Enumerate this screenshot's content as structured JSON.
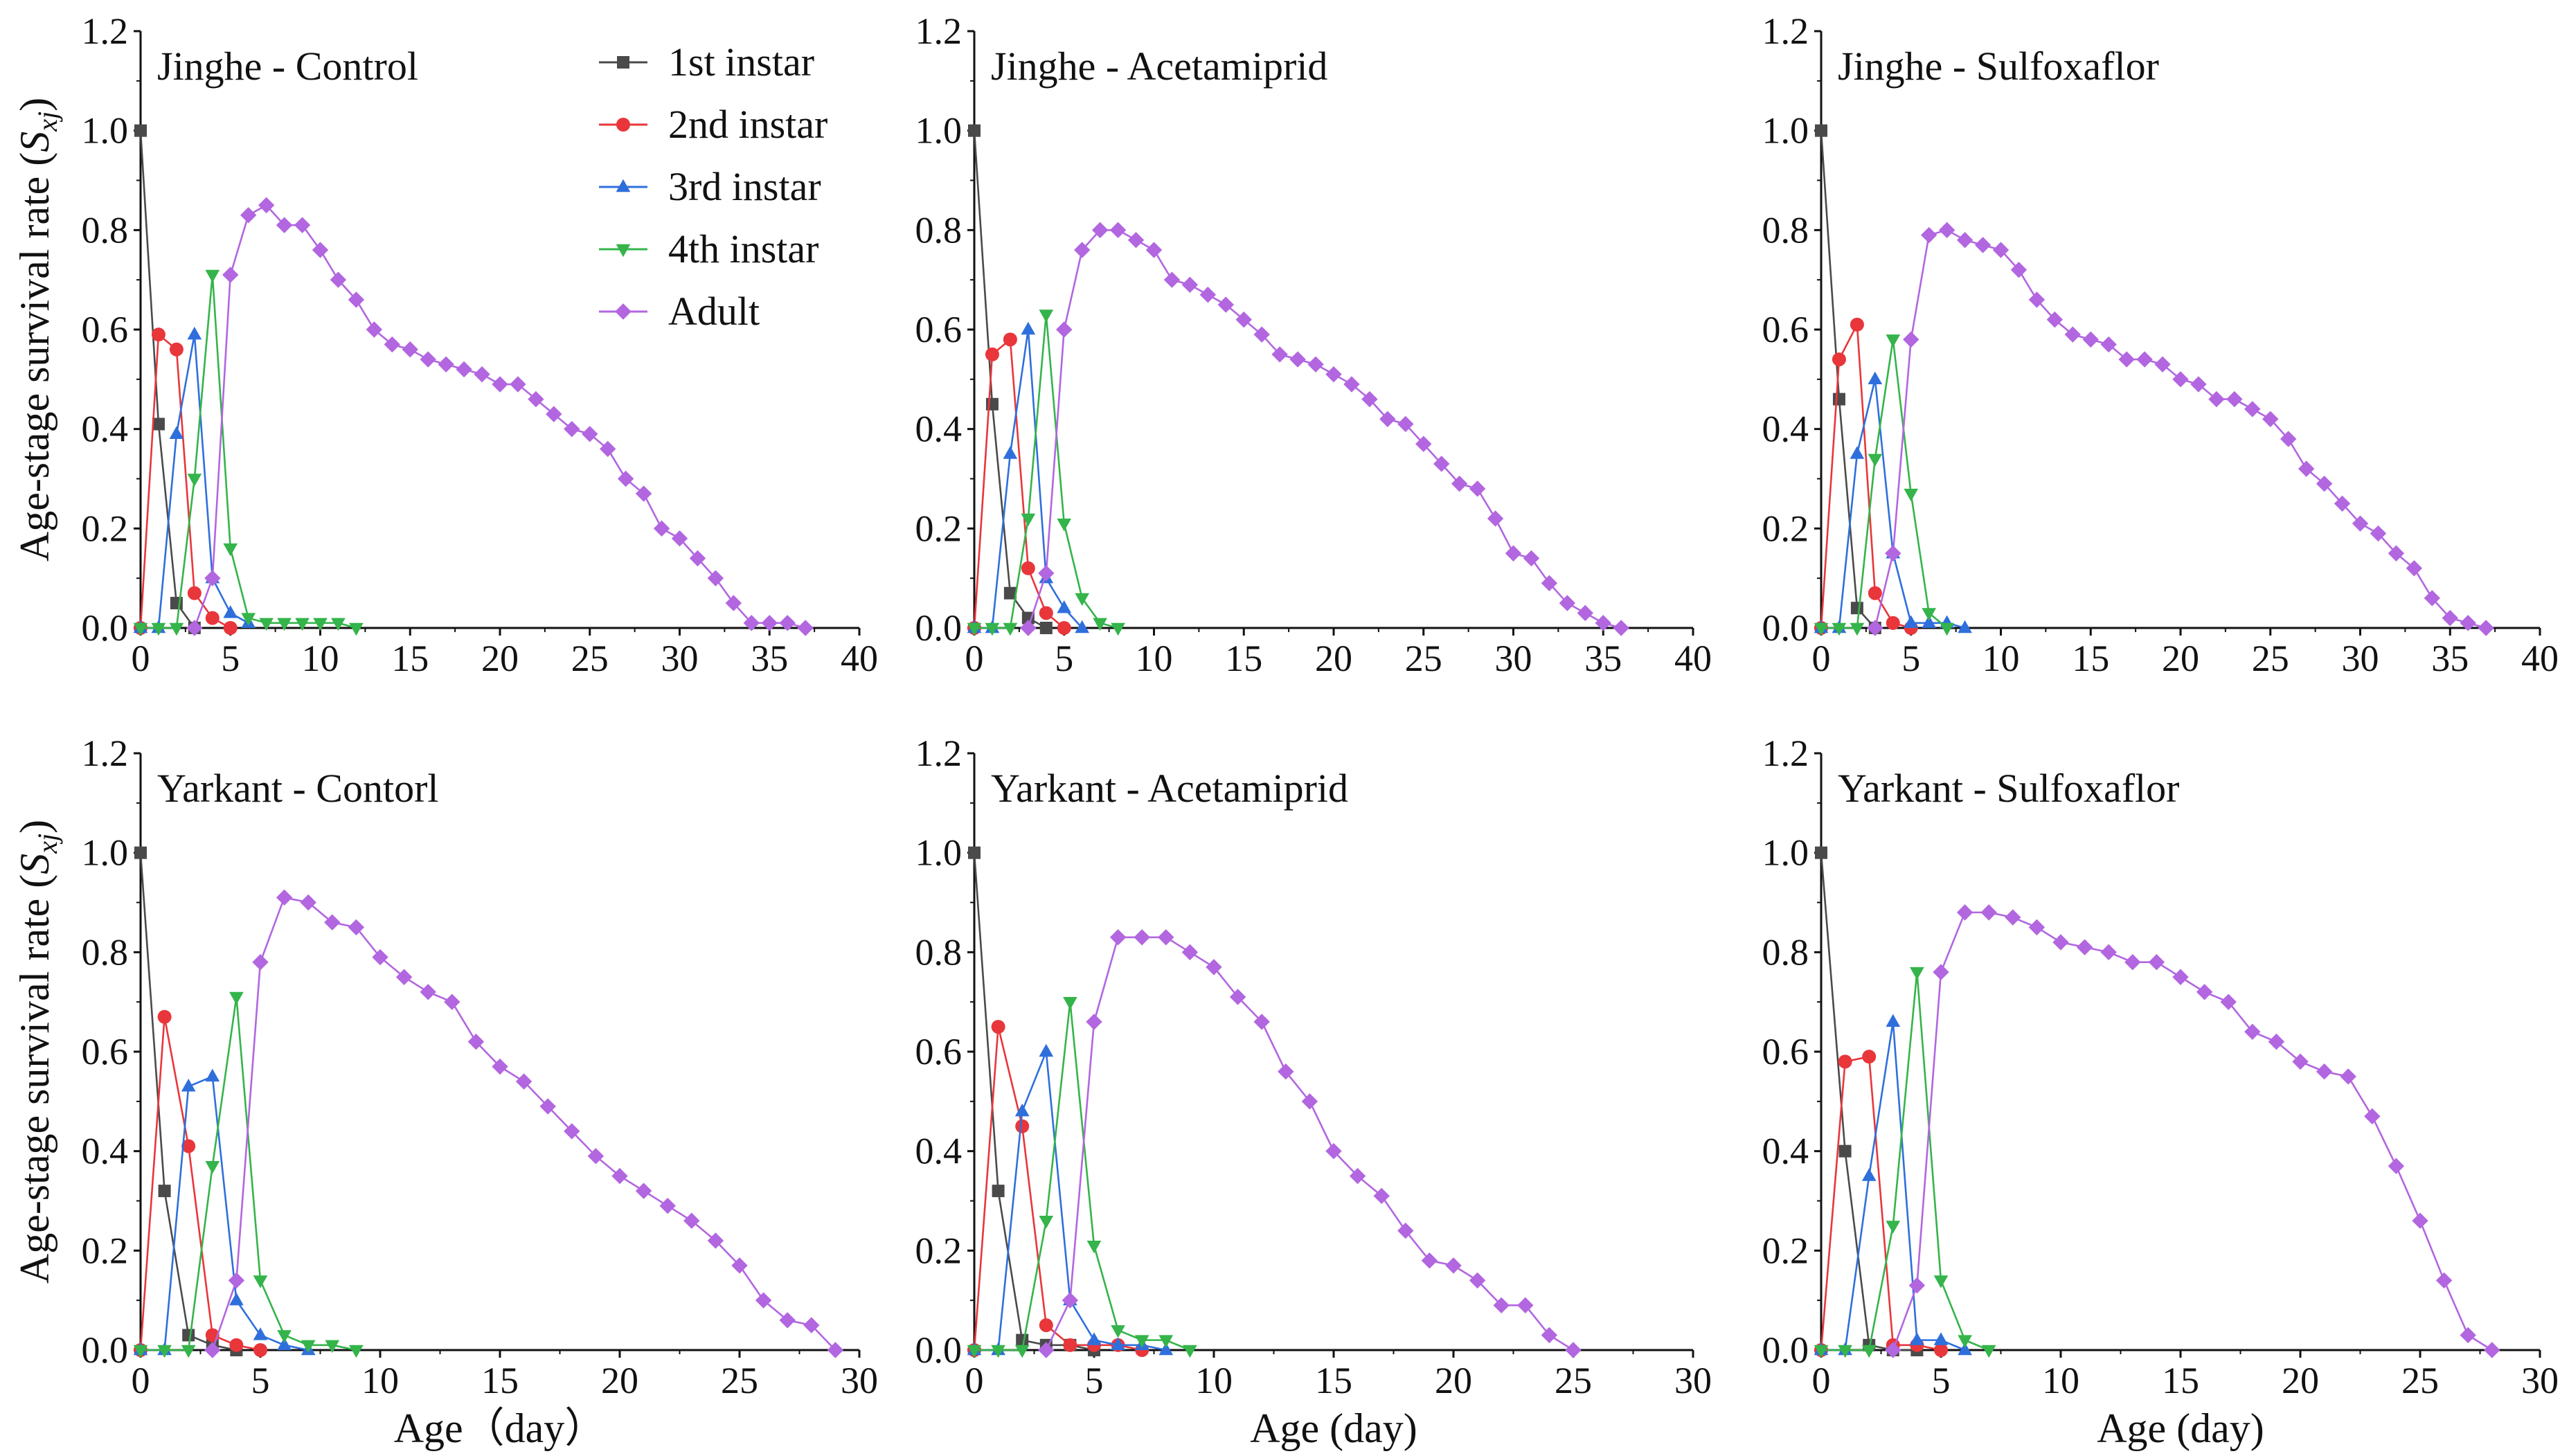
{
  "y_axis_label": "Age-stage survival rate (",
  "y_axis_symbol": "S",
  "y_axis_subscript": "xj",
  "y_axis_close": ")",
  "legend": [
    {
      "label": "1st instar",
      "color": "#4a4a4a",
      "marker": "square"
    },
    {
      "label": "2nd instar",
      "color": "#e8363b",
      "marker": "circle"
    },
    {
      "label": "3rd instar",
      "color": "#2f6fdc",
      "marker": "triangle-up"
    },
    {
      "label": "4th instar",
      "color": "#34b44a",
      "marker": "triangle-down"
    },
    {
      "label": "Adult",
      "color": "#b266e0",
      "marker": "diamond"
    }
  ],
  "chart_data": [
    {
      "type": "line",
      "title": "Jinghe - Control",
      "xlabel": "",
      "ylabel": "Age-stage survival rate (Sxj)",
      "xlim": [
        0,
        40
      ],
      "ylim": [
        0,
        1.2
      ],
      "xticks": [
        0,
        5,
        10,
        15,
        20,
        25,
        30,
        35,
        40
      ],
      "yticks": [
        0.0,
        0.2,
        0.4,
        0.6,
        0.8,
        1.0,
        1.2
      ],
      "series": [
        {
          "name": "1st instar",
          "x": [
            0,
            1,
            2,
            3
          ],
          "values": [
            1.0,
            0.41,
            0.05,
            0.0
          ]
        },
        {
          "name": "2nd instar",
          "x": [
            0,
            1,
            2,
            3,
            4,
            5
          ],
          "values": [
            0.0,
            0.59,
            0.56,
            0.07,
            0.02,
            0.0
          ]
        },
        {
          "name": "3rd instar",
          "x": [
            0,
            1,
            2,
            3,
            4,
            5,
            6
          ],
          "values": [
            0.0,
            0.0,
            0.39,
            0.59,
            0.1,
            0.03,
            0.01
          ]
        },
        {
          "name": "4th instar",
          "x": [
            0,
            1,
            2,
            3,
            4,
            5,
            6,
            7,
            8,
            9,
            10,
            11,
            12
          ],
          "values": [
            0.0,
            0.0,
            0.0,
            0.3,
            0.71,
            0.16,
            0.02,
            0.01,
            0.01,
            0.01,
            0.01,
            0.01,
            0.0
          ]
        },
        {
          "name": "Adult",
          "x": [
            3,
            4,
            5,
            6,
            7,
            8,
            9,
            10,
            11,
            12,
            13,
            14,
            15,
            16,
            17,
            18,
            19,
            20,
            21,
            22,
            23,
            24,
            25,
            26,
            27,
            28,
            29,
            30,
            31,
            32,
            33,
            34,
            35,
            36,
            37
          ],
          "values": [
            0.0,
            0.1,
            0.71,
            0.83,
            0.85,
            0.81,
            0.81,
            0.76,
            0.7,
            0.66,
            0.6,
            0.57,
            0.56,
            0.54,
            0.53,
            0.52,
            0.51,
            0.49,
            0.49,
            0.46,
            0.43,
            0.4,
            0.39,
            0.36,
            0.3,
            0.27,
            0.2,
            0.18,
            0.14,
            0.1,
            0.05,
            0.01,
            0.01,
            0.01,
            0.0
          ]
        }
      ]
    },
    {
      "type": "line",
      "title": "Jinghe - Acetamiprid",
      "xlabel": "",
      "ylabel": "",
      "xlim": [
        0,
        40
      ],
      "ylim": [
        0,
        1.2
      ],
      "xticks": [
        0,
        5,
        10,
        15,
        20,
        25,
        30,
        35,
        40
      ],
      "yticks": [
        0.0,
        0.2,
        0.4,
        0.6,
        0.8,
        1.0,
        1.2
      ],
      "series": [
        {
          "name": "1st instar",
          "x": [
            0,
            1,
            2,
            3,
            4
          ],
          "values": [
            1.0,
            0.45,
            0.07,
            0.02,
            0.0
          ]
        },
        {
          "name": "2nd instar",
          "x": [
            0,
            1,
            2,
            3,
            4,
            5
          ],
          "values": [
            0.0,
            0.55,
            0.58,
            0.12,
            0.03,
            0.0
          ]
        },
        {
          "name": "3rd instar",
          "x": [
            0,
            1,
            2,
            3,
            4,
            5,
            6
          ],
          "values": [
            0.0,
            0.0,
            0.35,
            0.6,
            0.1,
            0.04,
            0.0
          ]
        },
        {
          "name": "4th instar",
          "x": [
            0,
            1,
            2,
            3,
            4,
            5,
            6,
            7,
            8
          ],
          "values": [
            0.0,
            0.0,
            0.0,
            0.22,
            0.63,
            0.21,
            0.06,
            0.01,
            0.0
          ]
        },
        {
          "name": "Adult",
          "x": [
            3,
            4,
            5,
            6,
            7,
            8,
            9,
            10,
            11,
            12,
            13,
            14,
            15,
            16,
            17,
            18,
            19,
            20,
            21,
            22,
            23,
            24,
            25,
            26,
            27,
            28,
            29,
            30,
            31,
            32,
            33,
            34,
            35,
            36
          ],
          "values": [
            0.0,
            0.11,
            0.6,
            0.76,
            0.8,
            0.8,
            0.78,
            0.76,
            0.7,
            0.69,
            0.67,
            0.65,
            0.62,
            0.59,
            0.55,
            0.54,
            0.53,
            0.51,
            0.49,
            0.46,
            0.42,
            0.41,
            0.37,
            0.33,
            0.29,
            0.28,
            0.22,
            0.15,
            0.14,
            0.09,
            0.05,
            0.03,
            0.01,
            0.0
          ]
        }
      ]
    },
    {
      "type": "line",
      "title": "Jinghe - Sulfoxaflor",
      "xlabel": "",
      "ylabel": "",
      "xlim": [
        0,
        40
      ],
      "ylim": [
        0,
        1.2
      ],
      "xticks": [
        0,
        5,
        10,
        15,
        20,
        25,
        30,
        35,
        40
      ],
      "yticks": [
        0.0,
        0.2,
        0.4,
        0.6,
        0.8,
        1.0,
        1.2
      ],
      "series": [
        {
          "name": "1st instar",
          "x": [
            0,
            1,
            2,
            3
          ],
          "values": [
            1.0,
            0.46,
            0.04,
            0.0
          ]
        },
        {
          "name": "2nd instar",
          "x": [
            0,
            1,
            2,
            3,
            4,
            5
          ],
          "values": [
            0.0,
            0.54,
            0.61,
            0.07,
            0.01,
            0.0
          ]
        },
        {
          "name": "3rd instar",
          "x": [
            0,
            1,
            2,
            3,
            4,
            5,
            6,
            7,
            8
          ],
          "values": [
            0.0,
            0.0,
            0.35,
            0.5,
            0.15,
            0.01,
            0.01,
            0.01,
            0.0
          ]
        },
        {
          "name": "4th instar",
          "x": [
            0,
            1,
            2,
            3,
            4,
            5,
            6,
            7
          ],
          "values": [
            0.0,
            0.0,
            0.0,
            0.34,
            0.58,
            0.27,
            0.03,
            0.0
          ]
        },
        {
          "name": "Adult",
          "x": [
            3,
            4,
            5,
            6,
            7,
            8,
            9,
            10,
            11,
            12,
            13,
            14,
            15,
            16,
            17,
            18,
            19,
            20,
            21,
            22,
            23,
            24,
            25,
            26,
            27,
            28,
            29,
            30,
            31,
            32,
            33,
            34,
            35,
            36,
            37
          ],
          "values": [
            0.0,
            0.15,
            0.58,
            0.79,
            0.8,
            0.78,
            0.77,
            0.76,
            0.72,
            0.66,
            0.62,
            0.59,
            0.58,
            0.57,
            0.54,
            0.54,
            0.53,
            0.5,
            0.49,
            0.46,
            0.46,
            0.44,
            0.42,
            0.38,
            0.32,
            0.29,
            0.25,
            0.21,
            0.19,
            0.15,
            0.12,
            0.06,
            0.02,
            0.01,
            0.0
          ]
        }
      ]
    },
    {
      "type": "line",
      "title": "Yarkant - Contorl",
      "xlabel": "Age（day）",
      "ylabel": "Age-stage survival rate (Sxj)",
      "xlim": [
        0,
        30
      ],
      "ylim": [
        0,
        1.2
      ],
      "xticks": [
        0,
        5,
        10,
        15,
        20,
        25,
        30
      ],
      "yticks": [
        0.0,
        0.2,
        0.4,
        0.6,
        0.8,
        1.0,
        1.2
      ],
      "series": [
        {
          "name": "1st instar",
          "x": [
            0,
            1,
            2,
            3,
            4
          ],
          "values": [
            1.0,
            0.32,
            0.03,
            0.01,
            0.0
          ]
        },
        {
          "name": "2nd instar",
          "x": [
            0,
            1,
            2,
            3,
            4,
            5
          ],
          "values": [
            0.0,
            0.67,
            0.41,
            0.03,
            0.01,
            0.0
          ]
        },
        {
          "name": "3rd instar",
          "x": [
            0,
            1,
            2,
            3,
            4,
            5,
            6,
            7
          ],
          "values": [
            0.0,
            0.0,
            0.53,
            0.55,
            0.1,
            0.03,
            0.01,
            0.0
          ]
        },
        {
          "name": "4th instar",
          "x": [
            0,
            1,
            2,
            3,
            4,
            5,
            6,
            7,
            8,
            9
          ],
          "values": [
            0.0,
            0.0,
            0.0,
            0.37,
            0.71,
            0.14,
            0.03,
            0.01,
            0.01,
            0.0
          ]
        },
        {
          "name": "Adult",
          "x": [
            3,
            4,
            5,
            6,
            7,
            8,
            9,
            10,
            11,
            12,
            13,
            14,
            15,
            16,
            17,
            18,
            19,
            20,
            21,
            22,
            23,
            24,
            25,
            26,
            27,
            28,
            29
          ],
          "values": [
            0.0,
            0.14,
            0.78,
            0.91,
            0.9,
            0.86,
            0.85,
            0.79,
            0.75,
            0.72,
            0.7,
            0.62,
            0.57,
            0.54,
            0.49,
            0.44,
            0.39,
            0.35,
            0.32,
            0.29,
            0.26,
            0.22,
            0.17,
            0.1,
            0.06,
            0.05,
            0.0
          ]
        }
      ]
    },
    {
      "type": "line",
      "title": "Yarkant - Acetamiprid",
      "xlabel": "Age (day)",
      "ylabel": "",
      "xlim": [
        0,
        30
      ],
      "ylim": [
        0,
        1.2
      ],
      "xticks": [
        0,
        5,
        10,
        15,
        20,
        25,
        30
      ],
      "yticks": [
        0.0,
        0.2,
        0.4,
        0.6,
        0.8,
        1.0,
        1.2
      ],
      "series": [
        {
          "name": "1st instar",
          "x": [
            0,
            1,
            2,
            3,
            4,
            5
          ],
          "values": [
            1.0,
            0.32,
            0.02,
            0.01,
            0.01,
            0.0
          ]
        },
        {
          "name": "2nd instar",
          "x": [
            0,
            1,
            2,
            3,
            4,
            5,
            6,
            7
          ],
          "values": [
            0.0,
            0.65,
            0.45,
            0.05,
            0.01,
            0.01,
            0.01,
            0.0
          ]
        },
        {
          "name": "3rd instar",
          "x": [
            0,
            1,
            2,
            3,
            4,
            5,
            6,
            7,
            8
          ],
          "values": [
            0.0,
            0.0,
            0.48,
            0.6,
            0.1,
            0.02,
            0.01,
            0.01,
            0.0
          ]
        },
        {
          "name": "4th instar",
          "x": [
            0,
            1,
            2,
            3,
            4,
            5,
            6,
            7,
            8,
            9
          ],
          "values": [
            0.0,
            0.0,
            0.0,
            0.26,
            0.7,
            0.21,
            0.04,
            0.02,
            0.02,
            0.0
          ]
        },
        {
          "name": "Adult",
          "x": [
            3,
            4,
            5,
            6,
            7,
            8,
            9,
            10,
            11,
            12,
            13,
            14,
            15,
            16,
            17,
            18,
            19,
            20,
            21,
            22,
            23,
            24,
            25
          ],
          "values": [
            0.0,
            0.1,
            0.66,
            0.83,
            0.83,
            0.83,
            0.8,
            0.77,
            0.71,
            0.66,
            0.56,
            0.5,
            0.4,
            0.35,
            0.31,
            0.24,
            0.18,
            0.17,
            0.14,
            0.09,
            0.09,
            0.03,
            0.0
          ]
        }
      ]
    },
    {
      "type": "line",
      "title": "Yarkant - Sulfoxaflor",
      "xlabel": "Age (day)",
      "ylabel": "",
      "xlim": [
        0,
        30
      ],
      "ylim": [
        0,
        1.2
      ],
      "xticks": [
        0,
        5,
        10,
        15,
        20,
        25,
        30
      ],
      "yticks": [
        0.0,
        0.2,
        0.4,
        0.6,
        0.8,
        1.0,
        1.2
      ],
      "series": [
        {
          "name": "1st instar",
          "x": [
            0,
            1,
            2,
            3,
            4
          ],
          "values": [
            1.0,
            0.4,
            0.01,
            0.0,
            0.0
          ]
        },
        {
          "name": "2nd instar",
          "x": [
            0,
            1,
            2,
            3,
            4,
            5
          ],
          "values": [
            0.0,
            0.58,
            0.59,
            0.01,
            0.01,
            0.0
          ]
        },
        {
          "name": "3rd instar",
          "x": [
            0,
            1,
            2,
            3,
            4,
            5,
            6
          ],
          "values": [
            0.0,
            0.0,
            0.35,
            0.66,
            0.02,
            0.02,
            0.0
          ]
        },
        {
          "name": "4th instar",
          "x": [
            0,
            1,
            2,
            3,
            4,
            5,
            6,
            7
          ],
          "values": [
            0.0,
            0.0,
            0.0,
            0.25,
            0.76,
            0.14,
            0.02,
            0.0
          ]
        },
        {
          "name": "Adult",
          "x": [
            3,
            4,
            5,
            6,
            7,
            8,
            9,
            10,
            11,
            12,
            13,
            14,
            15,
            16,
            17,
            18,
            19,
            20,
            21,
            22,
            23,
            24,
            25,
            26,
            27,
            28
          ],
          "values": [
            0.0,
            0.13,
            0.76,
            0.88,
            0.88,
            0.87,
            0.85,
            0.82,
            0.81,
            0.8,
            0.78,
            0.78,
            0.75,
            0.72,
            0.7,
            0.64,
            0.62,
            0.58,
            0.56,
            0.55,
            0.47,
            0.37,
            0.26,
            0.14,
            0.03,
            0.0
          ]
        }
      ]
    }
  ]
}
